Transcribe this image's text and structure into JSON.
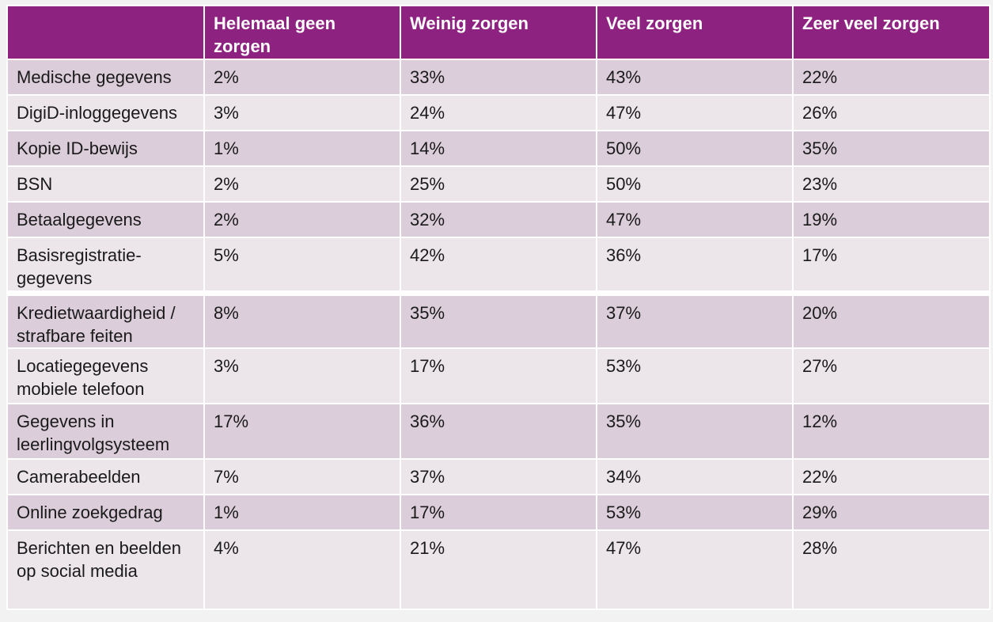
{
  "header": {
    "columns": [
      "",
      "Helemaal geen zorgen",
      "Weinig zorgen",
      "Veel zorgen",
      "Zeer veel zorgen"
    ]
  },
  "rows": [
    {
      "label": "Medische gegevens",
      "values": [
        "2%",
        "33%",
        "43%",
        "22%"
      ]
    },
    {
      "label": "DigiD-inloggegevens",
      "values": [
        "3%",
        "24%",
        "47%",
        "26%"
      ]
    },
    {
      "label": "Kopie ID-bewijs",
      "values": [
        "1%",
        "14%",
        "50%",
        "35%"
      ]
    },
    {
      "label": "BSN",
      "values": [
        "2%",
        "25%",
        "50%",
        "23%"
      ]
    },
    {
      "label": "Betaalgegevens",
      "values": [
        "2%",
        "32%",
        "47%",
        "19%"
      ]
    },
    {
      "label": "Basisregistratie-gegevens",
      "values": [
        "5%",
        "42%",
        "36%",
        "17%"
      ]
    },
    {
      "label": "Kredietwaardigheid / strafbare feiten",
      "values": [
        "8%",
        "35%",
        "37%",
        "20%"
      ]
    },
    {
      "label": "Locatiegegevens mobiele telefoon",
      "values": [
        "3%",
        "17%",
        "53%",
        "27%"
      ]
    },
    {
      "label": "Gegevens in leerlingvolgsysteem",
      "values": [
        "17%",
        "36%",
        "35%",
        "12%"
      ]
    },
    {
      "label": "Camerabeelden",
      "values": [
        "7%",
        "37%",
        "34%",
        "22%"
      ]
    },
    {
      "label": "Online zoekgedrag",
      "values": [
        "1%",
        "17%",
        "53%",
        "29%"
      ]
    },
    {
      "label": "Berichten en beelden op social media",
      "values": [
        "4%",
        "21%",
        "47%",
        "28%"
      ]
    }
  ],
  "colors": {
    "header_bg": "#8e2280",
    "row_dark": "#dbcdd9",
    "row_light": "#ece6eb"
  }
}
